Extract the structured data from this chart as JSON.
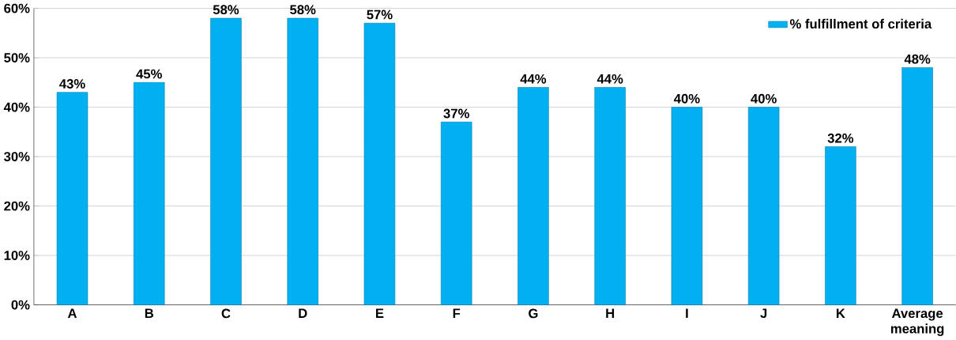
{
  "chart_data": {
    "type": "bar",
    "categories": [
      "A",
      "B",
      "C",
      "D",
      "E",
      "F",
      "G",
      "H",
      "I",
      "J",
      "K",
      "Average meaning"
    ],
    "series": [
      {
        "name": "% fulfillment of criteria",
        "color": "#00b0f0",
        "values": [
          43,
          45,
          58,
          58,
          57,
          37,
          44,
          44,
          40,
          40,
          32,
          48
        ],
        "value_labels": [
          "43%",
          "45%",
          "58%",
          "58%",
          "57%",
          "37%",
          "44%",
          "44%",
          "40%",
          "40%",
          "32%",
          "48%"
        ]
      }
    ],
    "ylim": [
      0,
      60
    ],
    "yticks": [
      {
        "value": 0,
        "label": "0%"
      },
      {
        "value": 10,
        "label": "10%"
      },
      {
        "value": 20,
        "label": "20%"
      },
      {
        "value": 30,
        "label": "30%"
      },
      {
        "value": 40,
        "label": "40%"
      },
      {
        "value": 50,
        "label": "50%"
      },
      {
        "value": 60,
        "label": "60%"
      }
    ],
    "grid": "y",
    "legend": "top right"
  }
}
